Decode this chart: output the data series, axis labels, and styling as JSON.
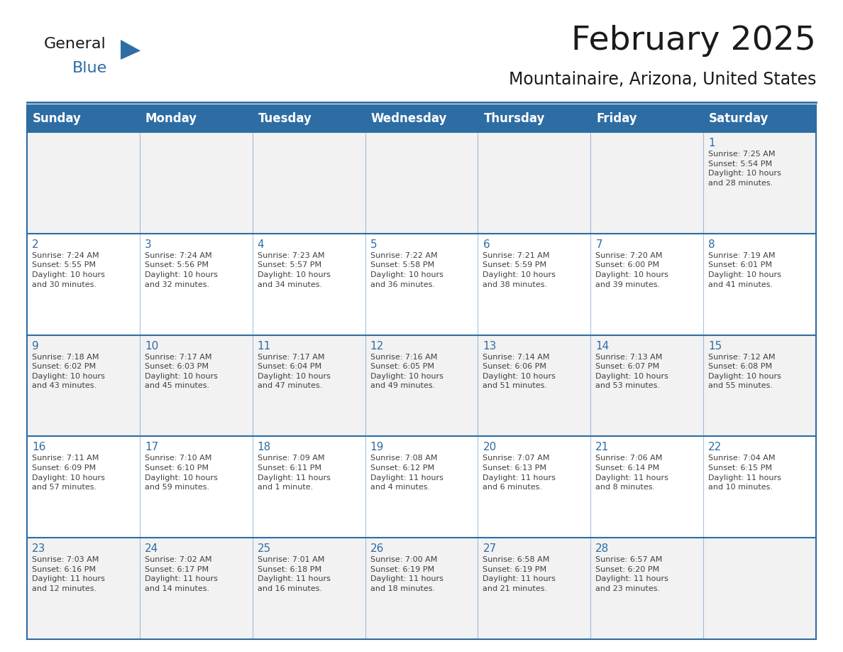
{
  "title": "February 2025",
  "subtitle": "Mountainaire, Arizona, United States",
  "header_bg_color": "#2E6DA4",
  "header_text_color": "#FFFFFF",
  "cell_bg_odd": "#F2F2F2",
  "cell_bg_even": "#FFFFFF",
  "day_number_color": "#2E6DA4",
  "cell_text_color": "#404040",
  "grid_line_color": "#2E6DA4",
  "days_of_week": [
    "Sunday",
    "Monday",
    "Tuesday",
    "Wednesday",
    "Thursday",
    "Friday",
    "Saturday"
  ],
  "weeks": [
    [
      {
        "day": null,
        "info": null
      },
      {
        "day": null,
        "info": null
      },
      {
        "day": null,
        "info": null
      },
      {
        "day": null,
        "info": null
      },
      {
        "day": null,
        "info": null
      },
      {
        "day": null,
        "info": null
      },
      {
        "day": 1,
        "info": "Sunrise: 7:25 AM\nSunset: 5:54 PM\nDaylight: 10 hours\nand 28 minutes."
      }
    ],
    [
      {
        "day": 2,
        "info": "Sunrise: 7:24 AM\nSunset: 5:55 PM\nDaylight: 10 hours\nand 30 minutes."
      },
      {
        "day": 3,
        "info": "Sunrise: 7:24 AM\nSunset: 5:56 PM\nDaylight: 10 hours\nand 32 minutes."
      },
      {
        "day": 4,
        "info": "Sunrise: 7:23 AM\nSunset: 5:57 PM\nDaylight: 10 hours\nand 34 minutes."
      },
      {
        "day": 5,
        "info": "Sunrise: 7:22 AM\nSunset: 5:58 PM\nDaylight: 10 hours\nand 36 minutes."
      },
      {
        "day": 6,
        "info": "Sunrise: 7:21 AM\nSunset: 5:59 PM\nDaylight: 10 hours\nand 38 minutes."
      },
      {
        "day": 7,
        "info": "Sunrise: 7:20 AM\nSunset: 6:00 PM\nDaylight: 10 hours\nand 39 minutes."
      },
      {
        "day": 8,
        "info": "Sunrise: 7:19 AM\nSunset: 6:01 PM\nDaylight: 10 hours\nand 41 minutes."
      }
    ],
    [
      {
        "day": 9,
        "info": "Sunrise: 7:18 AM\nSunset: 6:02 PM\nDaylight: 10 hours\nand 43 minutes."
      },
      {
        "day": 10,
        "info": "Sunrise: 7:17 AM\nSunset: 6:03 PM\nDaylight: 10 hours\nand 45 minutes."
      },
      {
        "day": 11,
        "info": "Sunrise: 7:17 AM\nSunset: 6:04 PM\nDaylight: 10 hours\nand 47 minutes."
      },
      {
        "day": 12,
        "info": "Sunrise: 7:16 AM\nSunset: 6:05 PM\nDaylight: 10 hours\nand 49 minutes."
      },
      {
        "day": 13,
        "info": "Sunrise: 7:14 AM\nSunset: 6:06 PM\nDaylight: 10 hours\nand 51 minutes."
      },
      {
        "day": 14,
        "info": "Sunrise: 7:13 AM\nSunset: 6:07 PM\nDaylight: 10 hours\nand 53 minutes."
      },
      {
        "day": 15,
        "info": "Sunrise: 7:12 AM\nSunset: 6:08 PM\nDaylight: 10 hours\nand 55 minutes."
      }
    ],
    [
      {
        "day": 16,
        "info": "Sunrise: 7:11 AM\nSunset: 6:09 PM\nDaylight: 10 hours\nand 57 minutes."
      },
      {
        "day": 17,
        "info": "Sunrise: 7:10 AM\nSunset: 6:10 PM\nDaylight: 10 hours\nand 59 minutes."
      },
      {
        "day": 18,
        "info": "Sunrise: 7:09 AM\nSunset: 6:11 PM\nDaylight: 11 hours\nand 1 minute."
      },
      {
        "day": 19,
        "info": "Sunrise: 7:08 AM\nSunset: 6:12 PM\nDaylight: 11 hours\nand 4 minutes."
      },
      {
        "day": 20,
        "info": "Sunrise: 7:07 AM\nSunset: 6:13 PM\nDaylight: 11 hours\nand 6 minutes."
      },
      {
        "day": 21,
        "info": "Sunrise: 7:06 AM\nSunset: 6:14 PM\nDaylight: 11 hours\nand 8 minutes."
      },
      {
        "day": 22,
        "info": "Sunrise: 7:04 AM\nSunset: 6:15 PM\nDaylight: 11 hours\nand 10 minutes."
      }
    ],
    [
      {
        "day": 23,
        "info": "Sunrise: 7:03 AM\nSunset: 6:16 PM\nDaylight: 11 hours\nand 12 minutes."
      },
      {
        "day": 24,
        "info": "Sunrise: 7:02 AM\nSunset: 6:17 PM\nDaylight: 11 hours\nand 14 minutes."
      },
      {
        "day": 25,
        "info": "Sunrise: 7:01 AM\nSunset: 6:18 PM\nDaylight: 11 hours\nand 16 minutes."
      },
      {
        "day": 26,
        "info": "Sunrise: 7:00 AM\nSunset: 6:19 PM\nDaylight: 11 hours\nand 18 minutes."
      },
      {
        "day": 27,
        "info": "Sunrise: 6:58 AM\nSunset: 6:19 PM\nDaylight: 11 hours\nand 21 minutes."
      },
      {
        "day": 28,
        "info": "Sunrise: 6:57 AM\nSunset: 6:20 PM\nDaylight: 11 hours\nand 23 minutes."
      },
      {
        "day": null,
        "info": null
      }
    ]
  ],
  "title_fontsize": 34,
  "subtitle_fontsize": 17,
  "header_fontsize": 12,
  "day_num_fontsize": 11,
  "cell_text_fontsize": 8
}
